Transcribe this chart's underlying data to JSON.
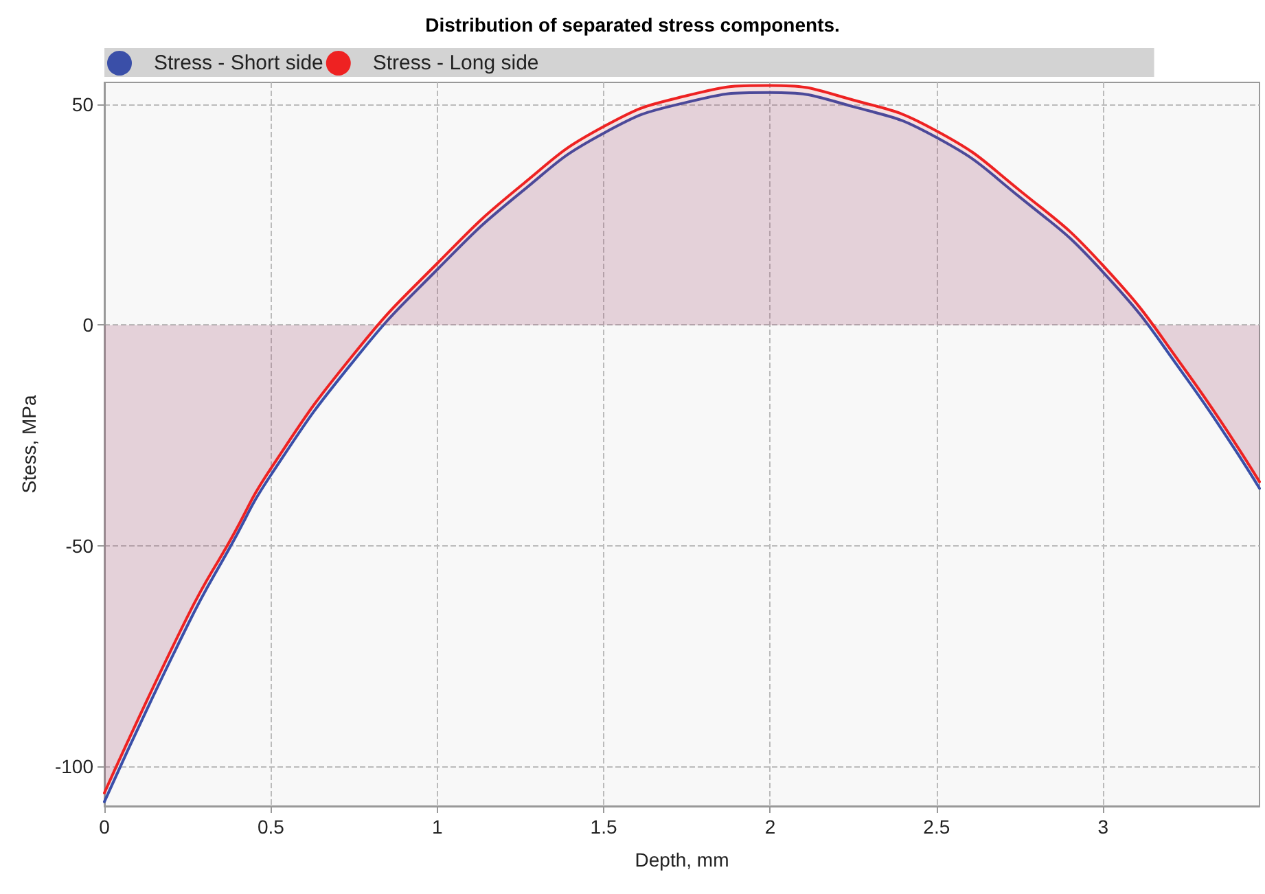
{
  "chart_data": {
    "type": "area",
    "title": "Distribution of separated stress components.",
    "xlabel": "Depth, mm",
    "ylabel": "Stess, MPa",
    "x": [
      0,
      0.25,
      0.38,
      0.5,
      0.75,
      1,
      1.25,
      1.5,
      1.75,
      2,
      2.25,
      2.5,
      2.75,
      3,
      3.25,
      3.47
    ],
    "series": [
      {
        "name": "Stress - Short side",
        "color": "#3a4fa8",
        "values": [
          -108,
          -68,
          -50,
          -34,
          -8,
          12.6,
          30,
          43.5,
          50.5,
          52.7,
          49.5,
          42.5,
          29,
          12,
          -12,
          -37
        ]
      },
      {
        "name": "Stress - Long side",
        "color": "#ee2222",
        "values": [
          -106,
          -66,
          -48.5,
          -32.5,
          -6.5,
          14,
          31.5,
          45,
          52,
          54.3,
          51,
          44,
          30.5,
          13.5,
          -10.5,
          -35.5
        ]
      }
    ],
    "xlim": [
      0,
      3.47
    ],
    "xticks": [
      0,
      0.5,
      1,
      1.5,
      2,
      2.5,
      3
    ],
    "ylim": [
      -109,
      55
    ],
    "yticks": [
      -100,
      -50,
      0,
      50
    ],
    "grid": true,
    "legend": "top left",
    "marker": "none",
    "line_style": "solid"
  }
}
